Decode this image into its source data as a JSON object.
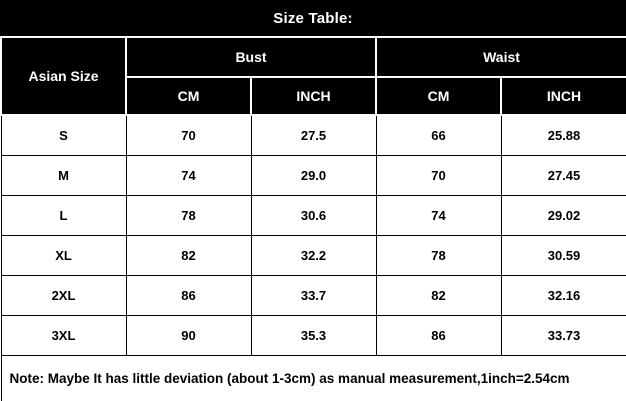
{
  "title": "Size Table:",
  "table": {
    "corner_header": "Asian Size",
    "groups": [
      {
        "label": "Bust"
      },
      {
        "label": "Waist"
      }
    ],
    "subheaders": [
      "CM",
      "INCH",
      "CM",
      "INCH"
    ],
    "rows": [
      {
        "size": "S",
        "bust_cm": "70",
        "bust_inch": "27.5",
        "waist_cm": "66",
        "waist_inch": "25.88"
      },
      {
        "size": "M",
        "bust_cm": "74",
        "bust_inch": "29.0",
        "waist_cm": "70",
        "waist_inch": "27.45"
      },
      {
        "size": "L",
        "bust_cm": "78",
        "bust_inch": "30.6",
        "waist_cm": "74",
        "waist_inch": "29.02"
      },
      {
        "size": "XL",
        "bust_cm": "82",
        "bust_inch": "32.2",
        "waist_cm": "78",
        "waist_inch": "30.59"
      },
      {
        "size": "2XL",
        "bust_cm": "86",
        "bust_inch": "33.7",
        "waist_cm": "82",
        "waist_inch": "32.16"
      },
      {
        "size": "3XL",
        "bust_cm": "90",
        "bust_inch": "35.3",
        "waist_cm": "86",
        "waist_inch": "33.73"
      }
    ]
  },
  "note": "Note: Maybe It has little deviation (about 1-3cm) as manual measurement,1inch=2.54cm",
  "colors": {
    "header_bg": "#000000",
    "header_text": "#ffffff",
    "body_bg": "#ffffff",
    "body_text": "#000000"
  }
}
